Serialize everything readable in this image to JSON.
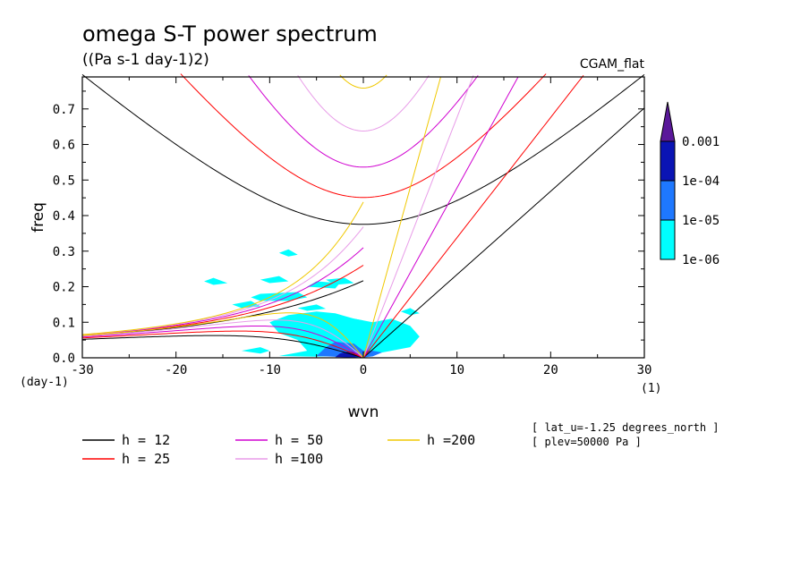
{
  "chart_data": {
    "type": "line",
    "title": "omega S-T power spectrum",
    "subtitle": "((Pa s-1 day-1)2)",
    "case_label": "CGAM_flat",
    "xlabel": "wvn",
    "ylabel": "freq",
    "x_unit": "(1)",
    "y_unit": "(day-1)",
    "xlim": [
      -30,
      30
    ],
    "ylim": [
      0,
      0.79
    ],
    "x_ticks": [
      -30,
      -20,
      -10,
      0,
      10,
      20,
      30
    ],
    "x_tick_labels": [
      "-30",
      "-20",
      "-10",
      "0",
      "10",
      "20",
      "30"
    ],
    "y_ticks": [
      0.0,
      0.1,
      0.2,
      0.3,
      0.4,
      0.5,
      0.6,
      0.7
    ],
    "y_tick_labels": [
      "0.0",
      "0.1",
      "0.2",
      "0.3",
      "0.4",
      "0.5",
      "0.6",
      "0.7"
    ],
    "colorbar": {
      "levels": [
        "0.001",
        "1e-04",
        "1e-05",
        "1e-06"
      ],
      "colors": [
        "#5a189a",
        "#0a14b4",
        "#1e78ff",
        "#00ffff"
      ]
    },
    "series": [
      {
        "name": "h = 12",
        "h": 12,
        "color": "#000000"
      },
      {
        "name": "h = 25",
        "h": 25,
        "color": "#ff0000"
      },
      {
        "name": "h = 50",
        "h": 50,
        "color": "#d000d0"
      },
      {
        "name": "h =100",
        "h": 100,
        "color": "#e89ce8"
      },
      {
        "name": "h =200",
        "h": 200,
        "color": "#f0c800"
      }
    ],
    "annotations": [
      "[ lat_u=-1.25 degrees_north ]",
      "[ plev=50000 Pa ]"
    ]
  }
}
